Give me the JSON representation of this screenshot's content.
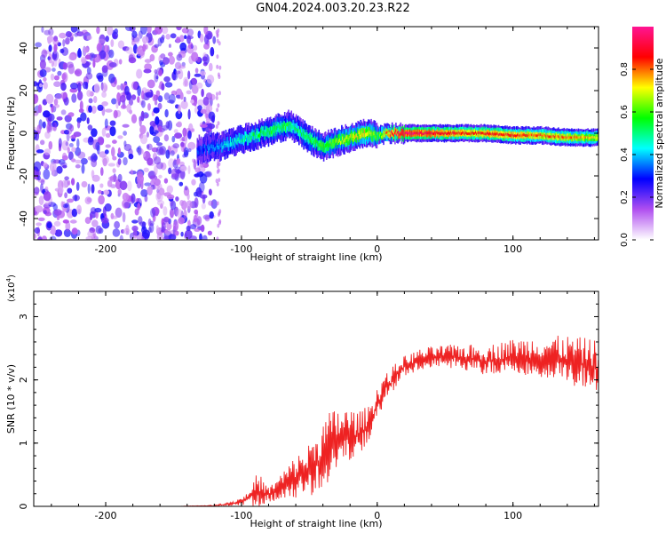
{
  "figure": {
    "title": "GN04.2024.003.20.23.R22"
  },
  "chart_data": [
    {
      "type": "heatmap",
      "title": "GN04.2024.003.20.23.R22",
      "xlabel": "Height of straight line (km)",
      "ylabel": "Frequency (Hz)",
      "xlim": [
        -253,
        163
      ],
      "ylim": [
        -50,
        50
      ],
      "x_ticks": [
        -200,
        -100,
        0,
        100
      ],
      "y_ticks": [
        -40,
        -20,
        0,
        20,
        40
      ],
      "colorbar": {
        "label": "Normalized spectral amplitude",
        "range": [
          0,
          1
        ],
        "ticks": [
          0.0,
          0.2,
          0.4,
          0.6,
          0.8
        ],
        "colors": [
          "#ffffff",
          "#b04ff0",
          "#0000ff",
          "#00ffff",
          "#00ff00",
          "#ffff00",
          "#ff0000",
          "#ff1493"
        ]
      },
      "noise_region_x": [
        -253,
        -120
      ],
      "ridge": {
        "x": [
          -133,
          -125,
          -115,
          -105,
          -95,
          -85,
          -75,
          -65,
          -60,
          -50,
          -40,
          -30,
          -20,
          -10,
          0,
          10,
          20,
          40,
          60,
          80,
          100,
          120,
          140,
          163
        ],
        "frequency": [
          -8,
          -7,
          -6,
          -4,
          -2,
          0,
          2,
          4,
          2,
          -3,
          -6,
          -4,
          -2,
          0,
          -1,
          0,
          0,
          0,
          0,
          0,
          -1,
          -1,
          -2,
          -2
        ],
        "amplitude": [
          0.3,
          0.35,
          0.4,
          0.45,
          0.5,
          0.55,
          0.55,
          0.55,
          0.5,
          0.55,
          0.6,
          0.65,
          0.7,
          0.75,
          0.6,
          0.9,
          0.95,
          0.9,
          0.85,
          0.85,
          0.85,
          0.8,
          0.8,
          0.7
        ]
      }
    },
    {
      "type": "line",
      "xlabel": "Height of straight line (km)",
      "ylabel": "SNR (10 * v/v)",
      "y_multiplier": "(x10",
      "y_multiplier_exp": "4",
      "xlim": [
        -253,
        163
      ],
      "ylim": [
        0,
        3.4
      ],
      "x_ticks": [
        -200,
        -100,
        0,
        100
      ],
      "y_ticks": [
        0,
        1,
        2,
        3
      ],
      "series": [
        {
          "color": "#ee2222",
          "x": [
            -253,
            -200,
            -150,
            -120,
            -105,
            -95,
            -88,
            -80,
            -70,
            -60,
            -50,
            -42,
            -35,
            -28,
            -20,
            -12,
            -5,
            0,
            5,
            10,
            15,
            20,
            30,
            40,
            50,
            60,
            80,
            100,
            120,
            140,
            160,
            163
          ],
          "mean": [
            0.0,
            0.0,
            0.0,
            0.01,
            0.05,
            0.12,
            0.25,
            0.18,
            0.3,
            0.45,
            0.55,
            0.75,
            0.9,
            1.05,
            1.1,
            1.15,
            1.35,
            1.6,
            1.85,
            1.95,
            2.1,
            2.2,
            2.3,
            2.35,
            2.35,
            2.35,
            2.3,
            2.35,
            2.35,
            2.3,
            2.2,
            2.2
          ],
          "spread": [
            0.0,
            0.0,
            0.0,
            0.01,
            0.04,
            0.1,
            0.3,
            0.12,
            0.25,
            0.35,
            0.45,
            0.55,
            0.6,
            0.55,
            0.45,
            0.35,
            0.3,
            0.3,
            0.25,
            0.22,
            0.2,
            0.18,
            0.18,
            0.18,
            0.2,
            0.22,
            0.25,
            0.3,
            0.35,
            0.4,
            0.45,
            0.6
          ]
        }
      ]
    }
  ]
}
